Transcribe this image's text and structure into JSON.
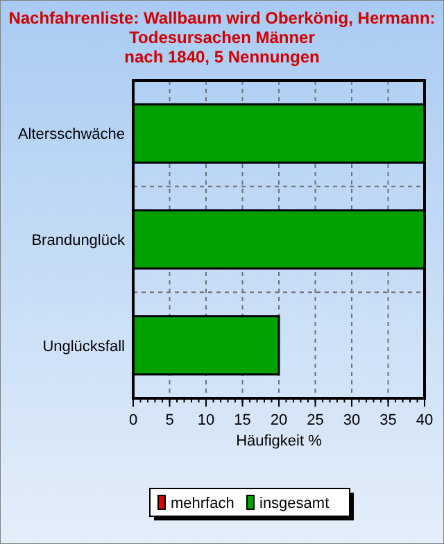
{
  "chart_data": {
    "type": "bar",
    "orientation": "horizontal",
    "title": "Nachfahrenliste: Wallbaum wird Oberkönig, Hermann:\nTodesursachen Männer\nnach 1840, 5 Nennungen",
    "xlabel": "Häufigkeit %",
    "categories": [
      "Altersschwäche",
      "Brandunglück",
      "Unglücksfall"
    ],
    "series": [
      {
        "name": "mehrfach",
        "color": "#e00000",
        "values": [
          0,
          0,
          0
        ]
      },
      {
        "name": "insgesamt",
        "color": "#00a000",
        "values": [
          40,
          40,
          20
        ]
      }
    ],
    "xlim": [
      0,
      40
    ],
    "xticks": [
      0,
      5,
      10,
      15,
      20,
      25,
      30,
      35,
      40
    ],
    "grid": true,
    "legend": "bottom"
  }
}
